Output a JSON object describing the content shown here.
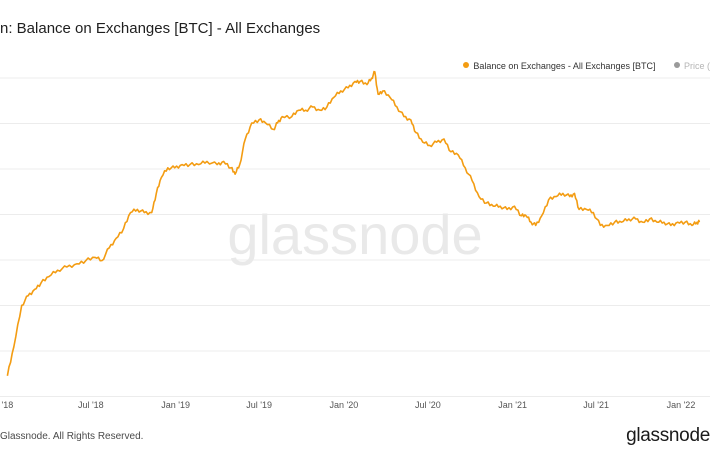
{
  "title": "n: Balance on Exchanges [BTC] - All Exchanges",
  "legend": [
    {
      "label": "Balance on Exchanges - All Exchanges [BTC]",
      "color": "#f39c12"
    },
    {
      "label": "Price (",
      "color": "#9a9a9a"
    }
  ],
  "watermark": "glassnode",
  "footer": {
    "copyright": "Glassnode. All Rights Reserved.",
    "logo": "glassnode"
  },
  "colors": {
    "series": "#f39c12",
    "grid": "#ececec",
    "watermark": "#e9e9e9"
  },
  "chart_data": {
    "type": "line",
    "title": "n: Balance on Exchanges [BTC] - All Exchanges",
    "xlabel": "",
    "ylabel": "",
    "grid": true,
    "legend_position": "top-right",
    "y_axis_labels": "not visible",
    "ylim": [
      0,
      100
    ],
    "y_values_note": "relative index, y-axis tick labels not visible in image",
    "xticks": [
      "'18",
      "Jul '18",
      "Jan '19",
      "Jul '19",
      "Jan '20",
      "Jul '20",
      "Jan '21",
      "Jul '21",
      "Jan '22"
    ],
    "series": [
      {
        "name": "Balance on Exchanges - All Exchanges [BTC]",
        "points": [
          [
            "2018-01-01",
            6
          ],
          [
            "2018-01-15",
            15
          ],
          [
            "2018-02-01",
            28
          ],
          [
            "2018-02-15",
            31
          ],
          [
            "2018-03-01",
            33
          ],
          [
            "2018-03-15",
            35
          ],
          [
            "2018-04-01",
            37
          ],
          [
            "2018-04-20",
            39
          ],
          [
            "2018-05-10",
            40
          ],
          [
            "2018-06-01",
            41
          ],
          [
            "2018-06-20",
            42
          ],
          [
            "2018-07-10",
            43
          ],
          [
            "2018-07-25",
            42
          ],
          [
            "2018-08-10",
            46
          ],
          [
            "2018-08-25",
            49
          ],
          [
            "2018-09-10",
            52
          ],
          [
            "2018-09-25",
            57
          ],
          [
            "2018-10-10",
            58
          ],
          [
            "2018-10-25",
            57
          ],
          [
            "2018-11-10",
            57
          ],
          [
            "2018-11-20",
            63
          ],
          [
            "2018-12-01",
            68
          ],
          [
            "2018-12-15",
            71
          ],
          [
            "2018-12-30",
            71
          ],
          [
            "2019-01-15",
            72
          ],
          [
            "2019-02-01",
            72
          ],
          [
            "2019-02-20",
            72
          ],
          [
            "2019-03-10",
            73
          ],
          [
            "2019-04-01",
            72
          ],
          [
            "2019-04-15",
            73
          ],
          [
            "2019-05-01",
            71
          ],
          [
            "2019-05-10",
            69
          ],
          [
            "2019-05-20",
            72
          ],
          [
            "2019-06-01",
            80
          ],
          [
            "2019-06-15",
            85
          ],
          [
            "2019-07-01",
            86
          ],
          [
            "2019-07-15",
            85
          ],
          [
            "2019-08-01",
            83
          ],
          [
            "2019-08-10",
            85
          ],
          [
            "2019-08-20",
            87
          ],
          [
            "2019-09-10",
            87
          ],
          [
            "2019-09-25",
            89
          ],
          [
            "2019-10-10",
            89
          ],
          [
            "2019-10-25",
            90
          ],
          [
            "2019-11-10",
            89
          ],
          [
            "2019-11-25",
            90
          ],
          [
            "2019-12-10",
            93
          ],
          [
            "2019-12-25",
            95
          ],
          [
            "2020-01-10",
            96
          ],
          [
            "2020-01-25",
            98
          ],
          [
            "2020-02-05",
            98
          ],
          [
            "2020-02-20",
            97
          ],
          [
            "2020-03-01",
            99
          ],
          [
            "2020-03-08",
            101
          ],
          [
            "2020-03-15",
            94
          ],
          [
            "2020-03-25",
            95
          ],
          [
            "2020-04-10",
            93
          ],
          [
            "2020-04-25",
            90
          ],
          [
            "2020-05-10",
            87
          ],
          [
            "2020-05-25",
            86
          ],
          [
            "2020-06-05",
            82
          ],
          [
            "2020-06-20",
            79
          ],
          [
            "2020-07-05",
            78
          ],
          [
            "2020-07-20",
            79
          ],
          [
            "2020-08-05",
            80
          ],
          [
            "2020-08-20",
            76
          ],
          [
            "2020-09-05",
            75
          ],
          [
            "2020-09-20",
            71
          ],
          [
            "2020-10-05",
            67
          ],
          [
            "2020-10-20",
            62
          ],
          [
            "2020-11-05",
            60
          ],
          [
            "2020-11-20",
            59
          ],
          [
            "2020-12-05",
            59
          ],
          [
            "2020-12-20",
            58
          ],
          [
            "2021-01-05",
            59
          ],
          [
            "2021-01-20",
            56
          ],
          [
            "2021-01-30",
            56
          ],
          [
            "2021-02-10",
            54
          ],
          [
            "2021-02-20",
            53
          ],
          [
            "2021-03-05",
            56
          ],
          [
            "2021-03-20",
            61
          ],
          [
            "2021-04-05",
            62
          ],
          [
            "2021-04-20",
            63
          ],
          [
            "2021-05-05",
            62
          ],
          [
            "2021-05-15",
            63
          ],
          [
            "2021-05-25",
            58
          ],
          [
            "2021-06-10",
            58
          ],
          [
            "2021-06-25",
            57
          ],
          [
            "2021-07-10",
            53
          ],
          [
            "2021-07-25",
            53
          ],
          [
            "2021-08-10",
            54
          ],
          [
            "2021-08-25",
            54
          ],
          [
            "2021-09-10",
            55
          ],
          [
            "2021-09-25",
            55
          ],
          [
            "2021-10-10",
            54
          ],
          [
            "2021-10-25",
            55
          ],
          [
            "2021-11-10",
            54
          ],
          [
            "2021-11-25",
            54
          ],
          [
            "2021-12-10",
            53
          ],
          [
            "2021-12-25",
            54
          ],
          [
            "2022-01-10",
            54
          ],
          [
            "2022-01-25",
            53
          ],
          [
            "2022-02-05",
            54
          ],
          [
            "2022-02-10",
            54
          ]
        ]
      }
    ]
  }
}
